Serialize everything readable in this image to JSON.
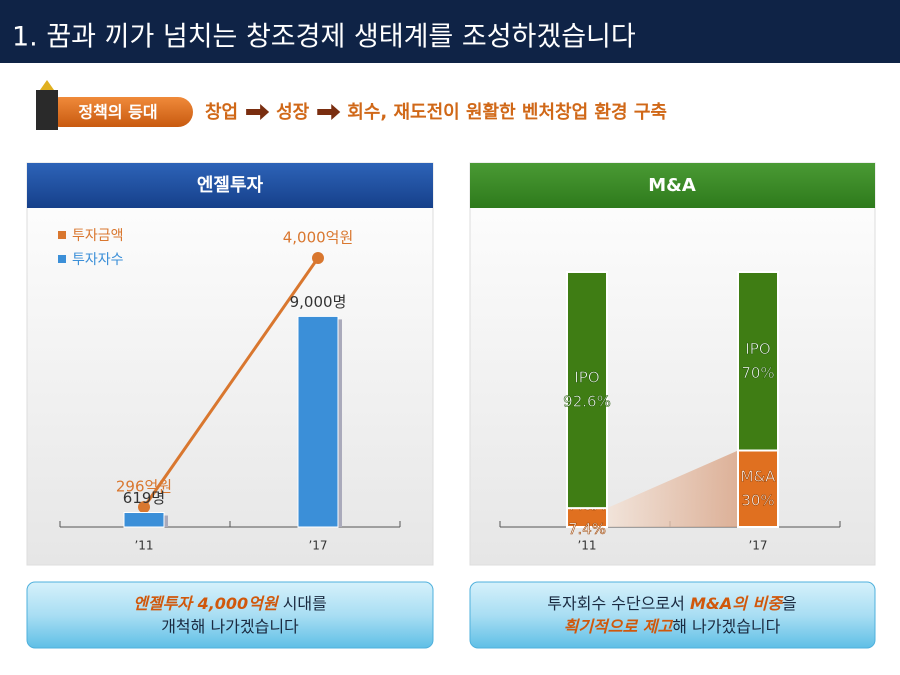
{
  "header": {
    "title": "1. 꿈과 끼가 넘치는 창조경제 생태계를 조성하겠습니다"
  },
  "policy": {
    "label": "정책의 등대",
    "steps": [
      "창업",
      "성장",
      "회수, 재도전이 원활한 벤처창업 환경 구축"
    ]
  },
  "chart_data": [
    {
      "type": "combo",
      "title": "엔젤투자",
      "categories": [
        "’11",
        "’17"
      ],
      "series": [
        {
          "name": "투자금액",
          "color": "#d9772f",
          "type": "line",
          "axis": "y2",
          "values": [
            296,
            4000
          ],
          "value_labels": [
            "296억원",
            "4,000억원"
          ]
        },
        {
          "name": "투자자수",
          "color": "#3b8fd8",
          "type": "bar",
          "values": [
            619,
            9000
          ],
          "value_labels": [
            "619명",
            "9,000명"
          ]
        }
      ],
      "ylim": [
        0,
        10000
      ],
      "y2lim": [
        0,
        4000
      ],
      "legend": "top-left"
    },
    {
      "type": "bar",
      "stacked": true,
      "title": "M&A",
      "categories": [
        "’11",
        "’17"
      ],
      "series": [
        {
          "name": "M&A",
          "color": "#e07020",
          "values": [
            7.4,
            30
          ],
          "value_labels": [
            "7.4%",
            "30%"
          ]
        },
        {
          "name": "IPO",
          "color": "#3f7d14",
          "values": [
            92.6,
            70
          ],
          "value_labels": [
            "92.6%",
            "70%"
          ]
        }
      ],
      "ylim": [
        0,
        100
      ]
    }
  ],
  "footers": [
    {
      "lines": [
        [
          {
            "text": "엔젤투자 4,000억원",
            "emphasis": true
          },
          {
            "text": " 시대를"
          }
        ],
        [
          {
            "text": "개척해 나가겠습니다"
          }
        ]
      ]
    },
    {
      "lines": [
        [
          {
            "text": "투자회수 수단으로서 "
          },
          {
            "text": "M&A의 비중",
            "emphasis": true
          },
          {
            "text": "을"
          }
        ],
        [
          {
            "text": "획기적으로 제고",
            "emphasis": true
          },
          {
            "text": "해 나가겠습니다"
          }
        ]
      ]
    }
  ]
}
